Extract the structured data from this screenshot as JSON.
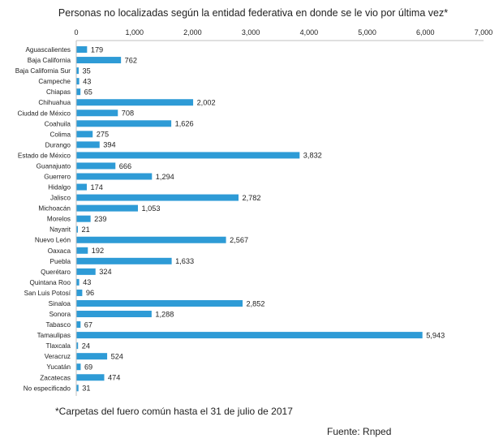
{
  "chart_data": {
    "type": "bar",
    "orientation": "horizontal",
    "title": "Personas no localizadas según la entidad federativa en donde se le vio por última vez*",
    "xlim": [
      0,
      7000
    ],
    "x_ticks": [
      "0",
      "1,000",
      "2,000",
      "3,000",
      "4,000",
      "5,000",
      "6,000",
      "7,000"
    ],
    "x_axis_position": "top",
    "grid": false,
    "categories": [
      "Aguascalientes",
      "Baja California",
      "Baja California Sur",
      "Campeche",
      "Chiapas",
      "Chihuahua",
      "Ciudad de México",
      "Coahuila",
      "Colima",
      "Durango",
      "Estado de México",
      "Guanajuato",
      "Guerrero",
      "Hidalgo",
      "Jalisco",
      "Michoacán",
      "Morelos",
      "Nayarit",
      "Nuevo León",
      "Oaxaca",
      "Puebla",
      "Querétaro",
      "Quintana Roo",
      "San Luis Potosí",
      "Sinaloa",
      "Sonora",
      "Tabasco",
      "Tamaulipas",
      "Tlaxcala",
      "Veracruz",
      "Yucatán",
      "Zacatecas",
      "No especificado"
    ],
    "values": [
      179,
      762,
      35,
      43,
      65,
      2002,
      708,
      1626,
      275,
      394,
      3832,
      666,
      1294,
      174,
      2782,
      1053,
      239,
      21,
      2567,
      192,
      1633,
      324,
      43,
      96,
      2852,
      1288,
      67,
      5943,
      24,
      524,
      69,
      474,
      31
    ],
    "value_labels": [
      "179",
      "762",
      "35",
      "43",
      "65",
      "2,002",
      "708",
      "1,626",
      "275",
      "394",
      "3,832",
      "666",
      "1,294",
      "174",
      "2,782",
      "1,053",
      "239",
      "21",
      "2,567",
      "192",
      "1,633",
      "324",
      "43",
      "96",
      "2,852",
      "1,288",
      "67",
      "5,943",
      "24",
      "524",
      "69",
      "474",
      "31"
    ],
    "bar_color": "#2e9bd6"
  },
  "footnote": "*Carpetas del fuero común hasta el 31 de julio de 2017",
  "source": "Fuente: Rnped"
}
